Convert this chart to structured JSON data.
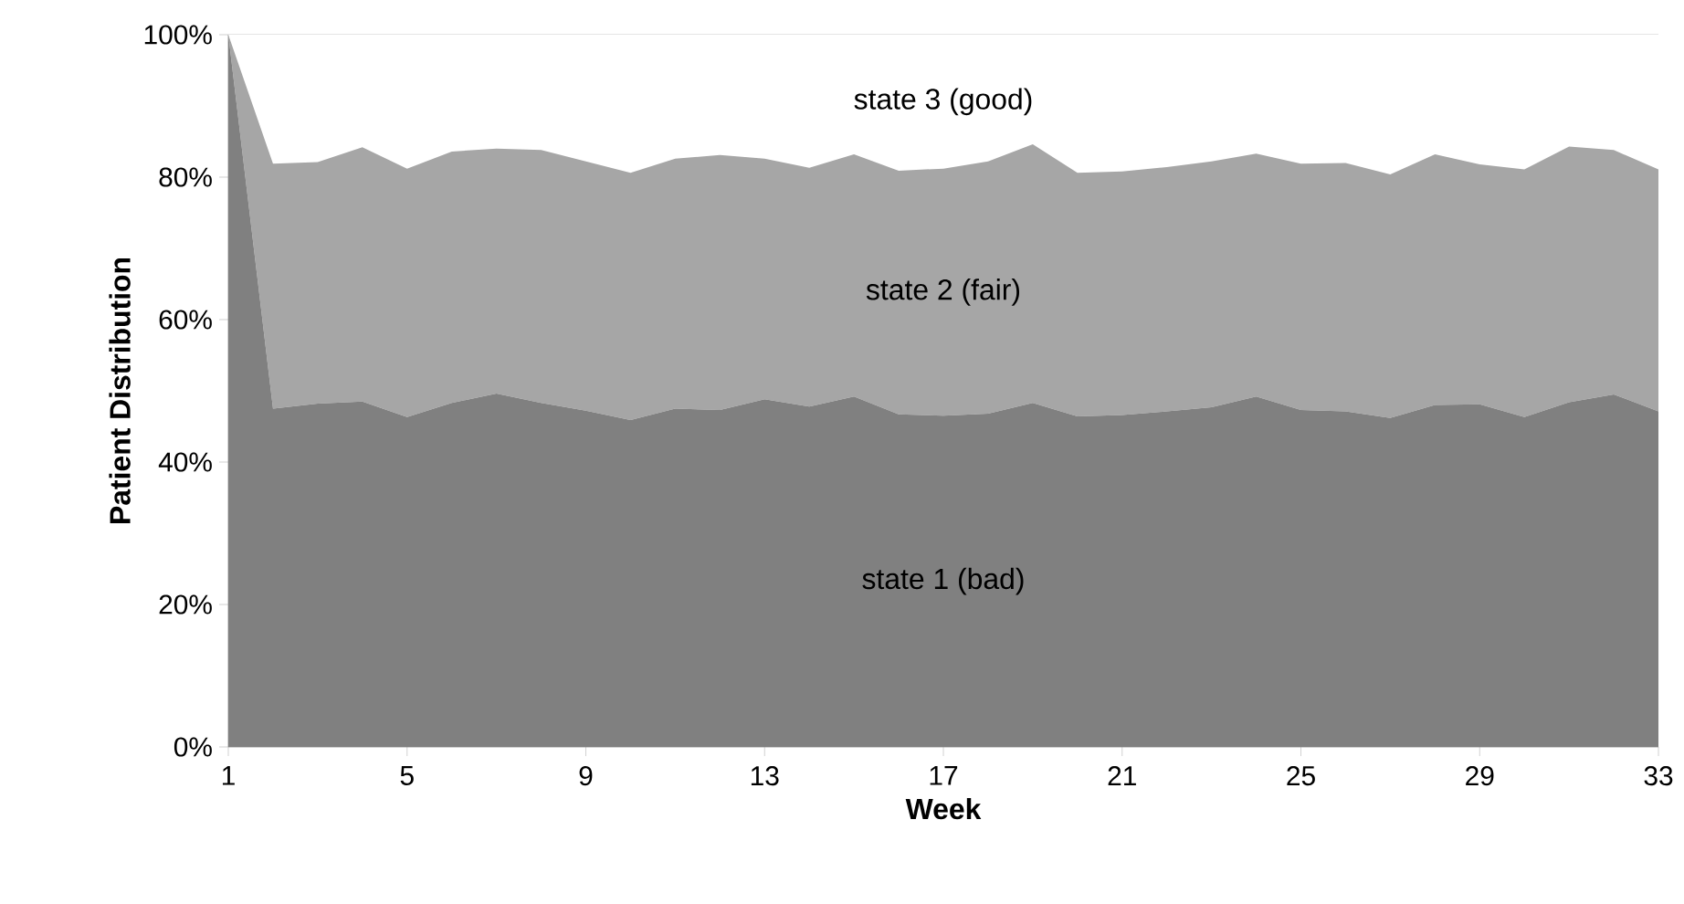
{
  "chart_data": {
    "type": "area",
    "stacked": true,
    "xlabel": "Week",
    "ylabel": "Patient Distribution",
    "x": [
      1,
      2,
      3,
      4,
      5,
      6,
      7,
      8,
      9,
      10,
      11,
      12,
      13,
      14,
      15,
      16,
      17,
      18,
      19,
      20,
      21,
      22,
      23,
      24,
      25,
      26,
      27,
      28,
      29,
      30,
      31,
      32,
      33
    ],
    "series": [
      {
        "name": "state 1 (bad)",
        "color": "#808080",
        "values": [
          100,
          47.5,
          48.2,
          48.5,
          46.3,
          48.3,
          49.6,
          48.3,
          47.2,
          45.9,
          47.5,
          47.3,
          48.8,
          47.8,
          49.2,
          46.7,
          46.5,
          46.8,
          48.3,
          46.4,
          46.6,
          47.1,
          47.7,
          49.2,
          47.3,
          47.1,
          46.2,
          48.0,
          48.1,
          46.3,
          48.4,
          49.5,
          47.1
        ]
      },
      {
        "name": "state 2 (fair)",
        "color": "#a6a6a6",
        "values": [
          0,
          34.4,
          33.9,
          35.7,
          34.9,
          35.3,
          34.4,
          35.5,
          35.0,
          34.7,
          35.1,
          35.8,
          33.8,
          33.5,
          34.0,
          34.2,
          34.7,
          35.4,
          36.3,
          34.2,
          34.2,
          34.3,
          34.5,
          34.1,
          34.6,
          34.9,
          34.2,
          35.2,
          33.7,
          34.8,
          35.9,
          34.3,
          34.0
        ]
      },
      {
        "name": "state 3 (good)",
        "color": "#ffffff",
        "values": [
          0,
          18.1,
          17.9,
          15.8,
          18.8,
          16.4,
          16.0,
          16.2,
          17.8,
          19.4,
          17.4,
          16.9,
          17.4,
          18.7,
          16.8,
          19.1,
          18.8,
          17.8,
          15.4,
          19.4,
          19.2,
          18.6,
          17.8,
          16.7,
          18.1,
          18.0,
          19.6,
          16.8,
          18.2,
          18.9,
          15.7,
          16.2,
          18.9
        ]
      }
    ],
    "xlim": [
      1,
      33
    ],
    "xticks": [
      1,
      5,
      9,
      13,
      17,
      21,
      25,
      29,
      33
    ],
    "ylim": [
      0,
      100
    ],
    "yticks": [
      {
        "value": 0,
        "label": "0%"
      },
      {
        "value": 20,
        "label": "20%"
      },
      {
        "value": 40,
        "label": "40%"
      },
      {
        "value": 60,
        "label": "60%"
      },
      {
        "value": 80,
        "label": "80%"
      },
      {
        "value": 100,
        "label": "100%"
      }
    ],
    "grid": false,
    "legend": false
  }
}
